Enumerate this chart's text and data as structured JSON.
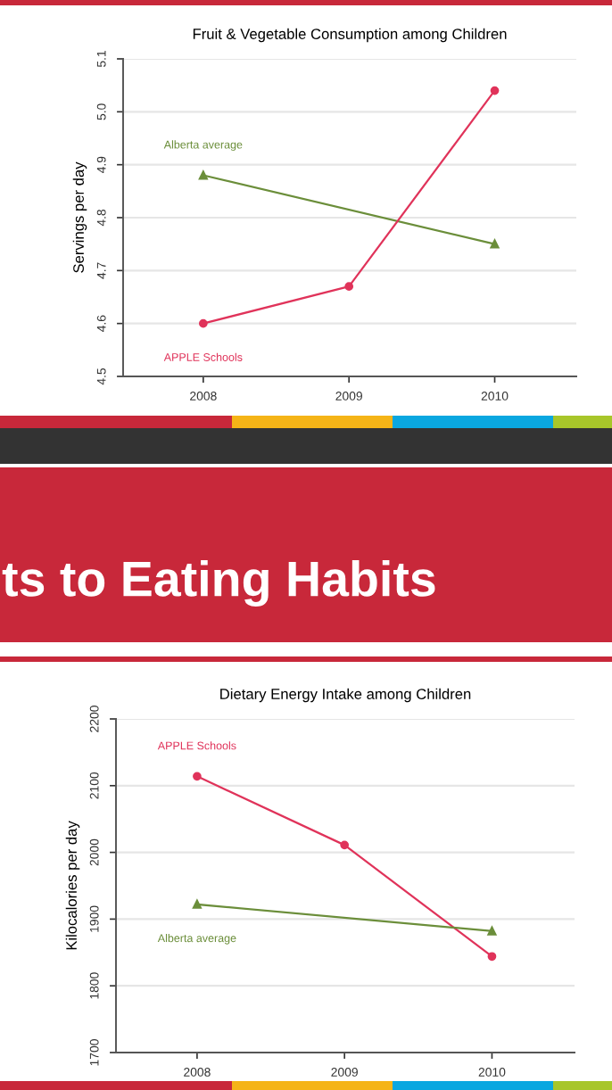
{
  "chart_data": [
    {
      "type": "line",
      "title": "Fruit & Vegetable Consumption among Children",
      "ylabel": "Servings per day",
      "x": [
        2008,
        2009,
        2010
      ],
      "xlim": [
        2007.45,
        2010.56
      ],
      "xticks": [
        2008,
        2009,
        2010
      ],
      "ylim": [
        4.5,
        5.1
      ],
      "yticks": [
        {
          "value": 4.5,
          "label": "4.5"
        },
        {
          "value": 4.6,
          "label": "4.6"
        },
        {
          "value": 4.7,
          "label": "4.7"
        },
        {
          "value": 4.8,
          "label": "4.8"
        },
        {
          "value": 4.9,
          "label": "4.9"
        },
        {
          "value": 5.0,
          "label": "5.0"
        },
        {
          "value": 5.1,
          "label": "5.1"
        }
      ],
      "grid": "y",
      "legend": false,
      "series": [
        {
          "name": "Alberta average",
          "color": "#6b8e3a",
          "marker": "triangle",
          "values": [
            4.88,
            null,
            4.75
          ]
        },
        {
          "name": "APPLE Schools",
          "color": "#e0335a",
          "marker": "circle",
          "values": [
            4.6,
            4.67,
            5.04
          ]
        }
      ]
    },
    {
      "type": "line",
      "title": "Dietary Energy Intake among Children",
      "ylabel": "Kilocalories per day",
      "x": [
        2008,
        2009,
        2010
      ],
      "xlim": [
        2007.45,
        2010.56
      ],
      "xticks": [
        2008,
        2009,
        2010
      ],
      "ylim": [
        1700,
        2200
      ],
      "yticks": [
        1700,
        1800,
        1900,
        2000,
        2100,
        2200
      ],
      "grid": "y",
      "legend": false,
      "annotations": [
        "ts to Eating Habits"
      ],
      "series": [
        {
          "name": "APPLE Schools",
          "color": "#e0335a",
          "marker": "circle",
          "values": [
            2114,
            2011,
            1844
          ]
        },
        {
          "name": "Alberta average",
          "color": "#6b8e3a",
          "marker": "triangle",
          "values": [
            1922,
            null,
            1882
          ]
        }
      ]
    }
  ]
}
